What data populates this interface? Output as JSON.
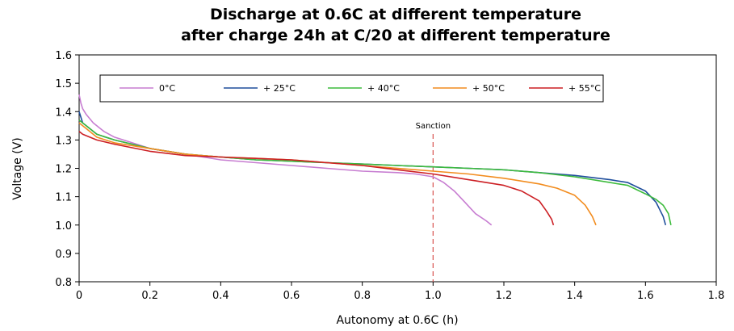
{
  "chart_data": {
    "type": "line",
    "title": [
      "Discharge at 0.6C at different temperature",
      "after charge 24h at C/20 at different temperature"
    ],
    "xlabel": "Autonomy at 0.6C (h)",
    "ylabel": "Voltage (V)",
    "xlim": [
      0,
      1.8
    ],
    "ylim": [
      0.8,
      1.6
    ],
    "x_ticks": [
      "0",
      "0.2",
      "0.4",
      "0.6",
      "0.8",
      "1.0",
      "1.2",
      "1.4",
      "1.6",
      "1.8"
    ],
    "y_ticks": [
      "0.8",
      "0.9",
      "1.0",
      "1.1",
      "1.2",
      "1.3",
      "1.4",
      "1.5",
      "1.6"
    ],
    "grid": false,
    "legend_position": "top",
    "annotations": [
      {
        "label": "Sanction",
        "x": 1.0,
        "style": "dashed vertical line",
        "color": "#d9534f"
      }
    ],
    "series": [
      {
        "name": "0°C",
        "color": "#c77dd1",
        "points": [
          [
            0,
            1.46
          ],
          [
            0.005,
            1.43
          ],
          [
            0.01,
            1.41
          ],
          [
            0.02,
            1.39
          ],
          [
            0.04,
            1.36
          ],
          [
            0.07,
            1.33
          ],
          [
            0.1,
            1.31
          ],
          [
            0.15,
            1.29
          ],
          [
            0.2,
            1.27
          ],
          [
            0.3,
            1.25
          ],
          [
            0.4,
            1.23
          ],
          [
            0.5,
            1.22
          ],
          [
            0.6,
            1.21
          ],
          [
            0.7,
            1.2
          ],
          [
            0.8,
            1.19
          ],
          [
            0.9,
            1.185
          ],
          [
            0.95,
            1.18
          ],
          [
            1.0,
            1.17
          ],
          [
            1.03,
            1.15
          ],
          [
            1.06,
            1.12
          ],
          [
            1.09,
            1.08
          ],
          [
            1.12,
            1.04
          ],
          [
            1.15,
            1.015
          ],
          [
            1.165,
            1.0
          ]
        ]
      },
      {
        "name": "+ 25°C",
        "color": "#1f4e9c",
        "points": [
          [
            0,
            1.4
          ],
          [
            0.005,
            1.38
          ],
          [
            0.01,
            1.36
          ],
          [
            0.02,
            1.35
          ],
          [
            0.05,
            1.32
          ],
          [
            0.1,
            1.3
          ],
          [
            0.2,
            1.27
          ],
          [
            0.3,
            1.25
          ],
          [
            0.4,
            1.24
          ],
          [
            0.5,
            1.23
          ],
          [
            0.6,
            1.225
          ],
          [
            0.7,
            1.22
          ],
          [
            0.8,
            1.215
          ],
          [
            0.9,
            1.21
          ],
          [
            1.0,
            1.205
          ],
          [
            1.1,
            1.2
          ],
          [
            1.2,
            1.195
          ],
          [
            1.3,
            1.185
          ],
          [
            1.4,
            1.175
          ],
          [
            1.5,
            1.16
          ],
          [
            1.55,
            1.15
          ],
          [
            1.6,
            1.12
          ],
          [
            1.63,
            1.08
          ],
          [
            1.65,
            1.03
          ],
          [
            1.657,
            1.0
          ]
        ]
      },
      {
        "name": "+ 40°C",
        "color": "#3dbb3d",
        "points": [
          [
            0,
            1.37
          ],
          [
            0.01,
            1.36
          ],
          [
            0.02,
            1.35
          ],
          [
            0.05,
            1.32
          ],
          [
            0.1,
            1.3
          ],
          [
            0.2,
            1.27
          ],
          [
            0.3,
            1.25
          ],
          [
            0.4,
            1.24
          ],
          [
            0.5,
            1.23
          ],
          [
            0.6,
            1.225
          ],
          [
            0.7,
            1.22
          ],
          [
            0.8,
            1.215
          ],
          [
            0.9,
            1.21
          ],
          [
            1.0,
            1.205
          ],
          [
            1.1,
            1.2
          ],
          [
            1.2,
            1.195
          ],
          [
            1.3,
            1.185
          ],
          [
            1.4,
            1.17
          ],
          [
            1.5,
            1.15
          ],
          [
            1.55,
            1.14
          ],
          [
            1.6,
            1.11
          ],
          [
            1.63,
            1.09
          ],
          [
            1.65,
            1.07
          ],
          [
            1.665,
            1.04
          ],
          [
            1.672,
            1.0
          ]
        ]
      },
      {
        "name": "+ 50°C",
        "color": "#f28c1e",
        "points": [
          [
            0,
            1.36
          ],
          [
            0.01,
            1.35
          ],
          [
            0.02,
            1.34
          ],
          [
            0.05,
            1.31
          ],
          [
            0.1,
            1.29
          ],
          [
            0.2,
            1.27
          ],
          [
            0.3,
            1.25
          ],
          [
            0.4,
            1.24
          ],
          [
            0.5,
            1.235
          ],
          [
            0.6,
            1.23
          ],
          [
            0.7,
            1.22
          ],
          [
            0.8,
            1.21
          ],
          [
            0.9,
            1.2
          ],
          [
            1.0,
            1.19
          ],
          [
            1.1,
            1.18
          ],
          [
            1.2,
            1.165
          ],
          [
            1.3,
            1.145
          ],
          [
            1.35,
            1.13
          ],
          [
            1.4,
            1.105
          ],
          [
            1.43,
            1.07
          ],
          [
            1.45,
            1.03
          ],
          [
            1.46,
            1.0
          ]
        ]
      },
      {
        "name": "+ 55°C",
        "color": "#cc1f24",
        "points": [
          [
            0,
            1.33
          ],
          [
            0.01,
            1.32
          ],
          [
            0.03,
            1.31
          ],
          [
            0.05,
            1.3
          ],
          [
            0.1,
            1.285
          ],
          [
            0.2,
            1.26
          ],
          [
            0.3,
            1.245
          ],
          [
            0.4,
            1.24
          ],
          [
            0.5,
            1.235
          ],
          [
            0.6,
            1.23
          ],
          [
            0.7,
            1.22
          ],
          [
            0.8,
            1.21
          ],
          [
            0.9,
            1.195
          ],
          [
            1.0,
            1.18
          ],
          [
            1.1,
            1.16
          ],
          [
            1.2,
            1.14
          ],
          [
            1.25,
            1.12
          ],
          [
            1.3,
            1.085
          ],
          [
            1.32,
            1.05
          ],
          [
            1.335,
            1.02
          ],
          [
            1.34,
            1.0
          ]
        ]
      }
    ]
  }
}
